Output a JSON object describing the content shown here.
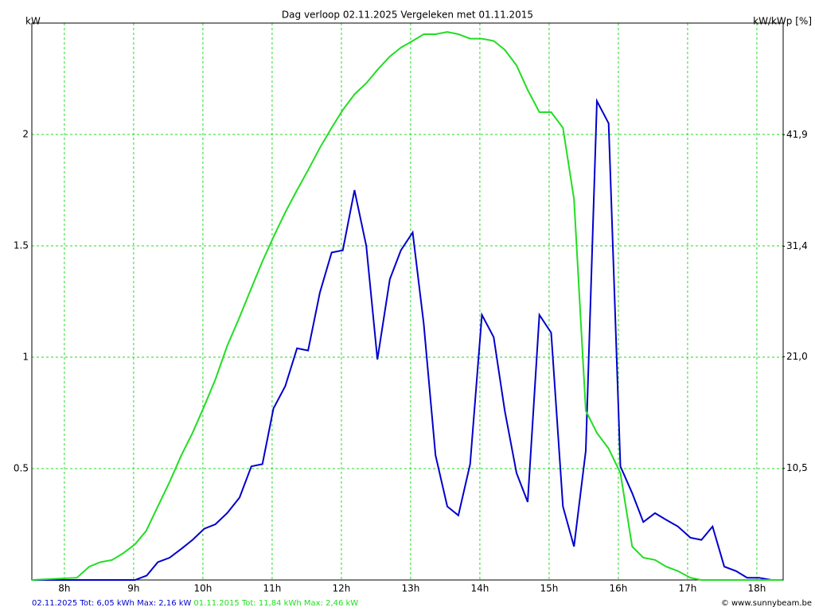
{
  "chart_data": {
    "type": "line",
    "title": "Dag  verloop 02.11.2025   Vergeleken met 01.11.2015",
    "y_label": "kW",
    "y2_label": "kW/kWp [%]",
    "credit": "© www.sunnybeam.be",
    "grid": true,
    "grid_color": "#22dd22",
    "xlim": [
      7.53,
      18.38
    ],
    "xticks": [
      {
        "value": 8,
        "label": "8h"
      },
      {
        "value": 9,
        "label": "9h"
      },
      {
        "value": 10,
        "label": "10h"
      },
      {
        "value": 11,
        "label": "11h"
      },
      {
        "value": 12,
        "label": "12h"
      },
      {
        "value": 13,
        "label": "13h"
      },
      {
        "value": 14,
        "label": "14h"
      },
      {
        "value": 15,
        "label": "15h"
      },
      {
        "value": 16,
        "label": "16h"
      },
      {
        "value": 17,
        "label": "17h"
      },
      {
        "value": 18,
        "label": "18h"
      }
    ],
    "ylim": [
      0,
      2.5
    ],
    "yticks": [
      0.5,
      1,
      1.5,
      2
    ],
    "y2lim": [
      0,
      52.4
    ],
    "y2ticks": [
      {
        "value": 10.5,
        "label": "10,5"
      },
      {
        "value": 21.0,
        "label": "21,0"
      },
      {
        "value": 31.4,
        "label": "31,4"
      },
      {
        "value": 41.9,
        "label": "41,9"
      }
    ],
    "series": [
      {
        "name": "02.11.2025 Tot: 6,05 kWh Max: 2,16 kW",
        "color": "#0000cc",
        "x": [
          7.53,
          8.68,
          9.02,
          9.19,
          9.35,
          9.52,
          9.69,
          9.85,
          10.02,
          10.18,
          10.35,
          10.53,
          10.7,
          10.86,
          11.02,
          11.19,
          11.36,
          11.52,
          11.69,
          11.86,
          12.02,
          12.19,
          12.36,
          12.52,
          12.7,
          12.86,
          13.03,
          13.19,
          13.36,
          13.53,
          13.69,
          13.86,
          14.03,
          14.2,
          14.36,
          14.53,
          14.69,
          14.86,
          15.03,
          15.2,
          15.36,
          15.53,
          15.69,
          15.86,
          16.03,
          16.2,
          16.36,
          16.53,
          16.69,
          16.86,
          17.04,
          17.2,
          17.36,
          17.53,
          17.7,
          17.86,
          18.03,
          18.21,
          18.37
        ],
        "values": [
          0,
          0,
          0.0,
          0.02,
          0.08,
          0.1,
          0.14,
          0.18,
          0.23,
          0.25,
          0.3,
          0.37,
          0.51,
          0.52,
          0.77,
          0.87,
          1.04,
          1.03,
          1.29,
          1.47,
          1.48,
          1.75,
          1.5,
          0.99,
          1.35,
          1.48,
          1.56,
          1.15,
          0.56,
          0.33,
          0.29,
          0.52,
          1.19,
          1.09,
          0.76,
          0.48,
          0.35,
          1.19,
          1.11,
          0.33,
          0.15,
          0.58,
          2.15,
          2.05,
          0.51,
          0.39,
          0.26,
          0.3,
          0.27,
          0.24,
          0.19,
          0.18,
          0.24,
          0.06,
          0.04,
          0.01,
          0.01,
          0.0,
          0.0
        ]
      },
      {
        "name": "01.11.2015 Tot: 11,84 kWh Max: 2,46 kW",
        "color": "#22dd22",
        "x": [
          7.53,
          8.18,
          8.36,
          8.52,
          8.69,
          8.85,
          9.02,
          9.18,
          9.35,
          9.52,
          9.69,
          9.85,
          10.02,
          10.18,
          10.35,
          10.53,
          10.7,
          10.86,
          11.02,
          11.19,
          11.36,
          11.52,
          11.69,
          11.86,
          12.02,
          12.19,
          12.36,
          12.52,
          12.7,
          12.86,
          13.03,
          13.19,
          13.36,
          13.53,
          13.69,
          13.86,
          14.03,
          14.2,
          14.36,
          14.53,
          14.69,
          14.86,
          15.03,
          15.2,
          15.36,
          15.53,
          15.69,
          15.86,
          16.03,
          16.2,
          16.36,
          16.53,
          16.69,
          16.86,
          17.04,
          17.2,
          17.36,
          18.37
        ],
        "values": [
          0,
          0.01,
          0.06,
          0.08,
          0.09,
          0.12,
          0.16,
          0.22,
          0.33,
          0.44,
          0.56,
          0.66,
          0.78,
          0.9,
          1.05,
          1.18,
          1.31,
          1.43,
          1.54,
          1.65,
          1.75,
          1.84,
          1.94,
          2.03,
          2.11,
          2.18,
          2.23,
          2.29,
          2.35,
          2.39,
          2.42,
          2.45,
          2.45,
          2.46,
          2.45,
          2.43,
          2.43,
          2.42,
          2.38,
          2.31,
          2.2,
          2.1,
          2.1,
          2.03,
          1.71,
          0.76,
          0.66,
          0.59,
          0.48,
          0.15,
          0.1,
          0.09,
          0.06,
          0.04,
          0.01,
          0.0,
          0,
          0
        ]
      }
    ]
  }
}
